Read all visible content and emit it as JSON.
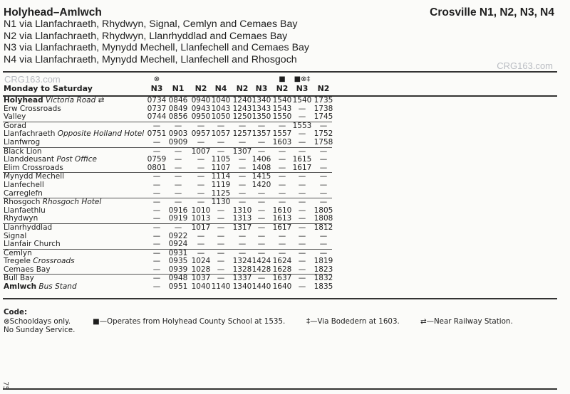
{
  "header": {
    "title": "Holyhead–Amlwch",
    "operator": "Crosville N1, N2, N3, N4",
    "routes": [
      "N1 via Llanfachraeth, Rhydwyn, Signal, Cemlyn and Cemaes Bay",
      "N2 via Llanfachraeth, Rhydwyn, Llanrhyddlad and Cemaes Bay",
      "N3 via Llanfachraeth, Mynydd Mechell, Llanfechell and Cemaes Bay",
      "N4 via Llanfachraeth, Mynydd Mechell, Llanfechell and Rhosgoch"
    ],
    "watermark": "CRG163.com"
  },
  "timetable": {
    "days": "Monday to Saturday",
    "columns": [
      {
        "route": "N3",
        "symbols": "⊗"
      },
      {
        "route": "N1",
        "symbols": ""
      },
      {
        "route": "N2",
        "symbols": ""
      },
      {
        "route": "N4",
        "symbols": ""
      },
      {
        "route": "N2",
        "symbols": ""
      },
      {
        "route": "N3",
        "symbols": ""
      },
      {
        "route": "N2",
        "symbols": "■"
      },
      {
        "route": "N3",
        "symbols": "■⊗‡"
      },
      {
        "route": "N2",
        "symbols": ""
      }
    ],
    "rows": [
      {
        "stop": "Holyhead",
        "detail": "Victoria Road",
        "bold": true,
        "rail": true,
        "group_start": true,
        "times": [
          "0734",
          "0846",
          "0940",
          "1040",
          "1240",
          "1340",
          "1540",
          "1540",
          "1735"
        ]
      },
      {
        "stop": "Erw Crossroads",
        "detail": "",
        "times": [
          "0737",
          "0849",
          "0943",
          "1043",
          "1243",
          "1343",
          "1543",
          "—",
          "1738"
        ]
      },
      {
        "stop": "Valley",
        "detail": "",
        "times": [
          "0744",
          "0856",
          "0950",
          "1050",
          "1250",
          "1350",
          "1550",
          "—",
          "1745"
        ]
      },
      {
        "stop": "Gorad",
        "detail": "",
        "group_start": true,
        "times": [
          "—",
          "—",
          "—",
          "—",
          "—",
          "—",
          "—",
          "1553",
          "—"
        ]
      },
      {
        "stop": "Llanfachraeth",
        "detail": "Opposite Holland Hotel",
        "times": [
          "0751",
          "0903",
          "0957",
          "1057",
          "1257",
          "1357",
          "1557",
          "—",
          "1752"
        ]
      },
      {
        "stop": "Llanfwrog",
        "detail": "",
        "times": [
          "—",
          "0909",
          "—",
          "—",
          "—",
          "—",
          "1603",
          "—",
          "1758"
        ]
      },
      {
        "stop": "Black Lion",
        "detail": "",
        "group_start": true,
        "times": [
          "—",
          "—",
          "1007",
          "—",
          "1307",
          "—",
          "—",
          "—",
          "—"
        ]
      },
      {
        "stop": "Llanddeusant",
        "detail": "Post Office",
        "times": [
          "0759",
          "—",
          "—",
          "1105",
          "—",
          "1406",
          "—",
          "1615",
          "—"
        ]
      },
      {
        "stop": "Elim Crossroads",
        "detail": "",
        "times": [
          "0801",
          "—",
          "—",
          "1107",
          "—",
          "1408",
          "—",
          "1617",
          "—"
        ]
      },
      {
        "stop": "Mynydd Mechell",
        "detail": "",
        "group_start": true,
        "times": [
          "—",
          "—",
          "—",
          "1114",
          "—",
          "1415",
          "—",
          "—",
          "—"
        ]
      },
      {
        "stop": "Llanfechell",
        "detail": "",
        "times": [
          "—",
          "—",
          "—",
          "1119",
          "—",
          "1420",
          "—",
          "—",
          "—"
        ]
      },
      {
        "stop": "Carreglefn",
        "detail": "",
        "times": [
          "—",
          "—",
          "—",
          "1125",
          "—",
          "—",
          "—",
          "—",
          "—"
        ]
      },
      {
        "stop": "Rhosgoch",
        "detail": "Rhosgoch Hotel",
        "group_start": true,
        "times": [
          "—",
          "—",
          "—",
          "1130",
          "—",
          "—",
          "—",
          "—",
          "—"
        ]
      },
      {
        "stop": "Llanfaethlu",
        "detail": "",
        "times": [
          "—",
          "0916",
          "1010",
          "—",
          "1310",
          "—",
          "1610",
          "—",
          "1805"
        ]
      },
      {
        "stop": "Rhydwyn",
        "detail": "",
        "times": [
          "—",
          "0919",
          "1013",
          "—",
          "1313",
          "—",
          "1613",
          "—",
          "1808"
        ]
      },
      {
        "stop": "Llanrhyddlad",
        "detail": "",
        "group_start": true,
        "times": [
          "—",
          "—",
          "1017",
          "—",
          "1317",
          "—",
          "1617",
          "—",
          "1812"
        ]
      },
      {
        "stop": "Signal",
        "detail": "",
        "times": [
          "—",
          "0922",
          "—",
          "—",
          "—",
          "—",
          "—",
          "—",
          "—"
        ]
      },
      {
        "stop": "Llanfair Church",
        "detail": "",
        "times": [
          "—",
          "0924",
          "—",
          "—",
          "—",
          "—",
          "—",
          "—",
          "—"
        ]
      },
      {
        "stop": "Cemlyn",
        "detail": "",
        "group_start": true,
        "times": [
          "—",
          "0931",
          "—",
          "—",
          "—",
          "—",
          "—",
          "—",
          "—"
        ]
      },
      {
        "stop": "Tregele",
        "detail": "Crossroads",
        "times": [
          "—",
          "0935",
          "1024",
          "—",
          "1324",
          "1424",
          "1624",
          "—",
          "1819"
        ]
      },
      {
        "stop": "Cemaes Bay",
        "detail": "",
        "times": [
          "—",
          "0939",
          "1028",
          "—",
          "1328",
          "1428",
          "1628",
          "—",
          "1823"
        ]
      },
      {
        "stop": "Bull Bay",
        "detail": "",
        "group_start": true,
        "times": [
          "—",
          "0948",
          "1037",
          "—",
          "1337",
          "—",
          "1637",
          "—",
          "1832"
        ]
      },
      {
        "stop": "Amlwch",
        "detail": "Bus Stand",
        "bold": true,
        "times": [
          "—",
          "0951",
          "1040",
          "1140",
          "1340",
          "1440",
          "1640",
          "—",
          "1835"
        ]
      }
    ]
  },
  "code": {
    "heading": "Code:",
    "schooldays": "⊗Schooldays only.",
    "no_sunday": "No Sunday Service.",
    "school_bus": "■—Operates from Holyhead County School at 1535.",
    "bodedern": "‡—Via Bodedern at 1603.",
    "railway": "—Near Railway Station."
  },
  "page_number": "75"
}
